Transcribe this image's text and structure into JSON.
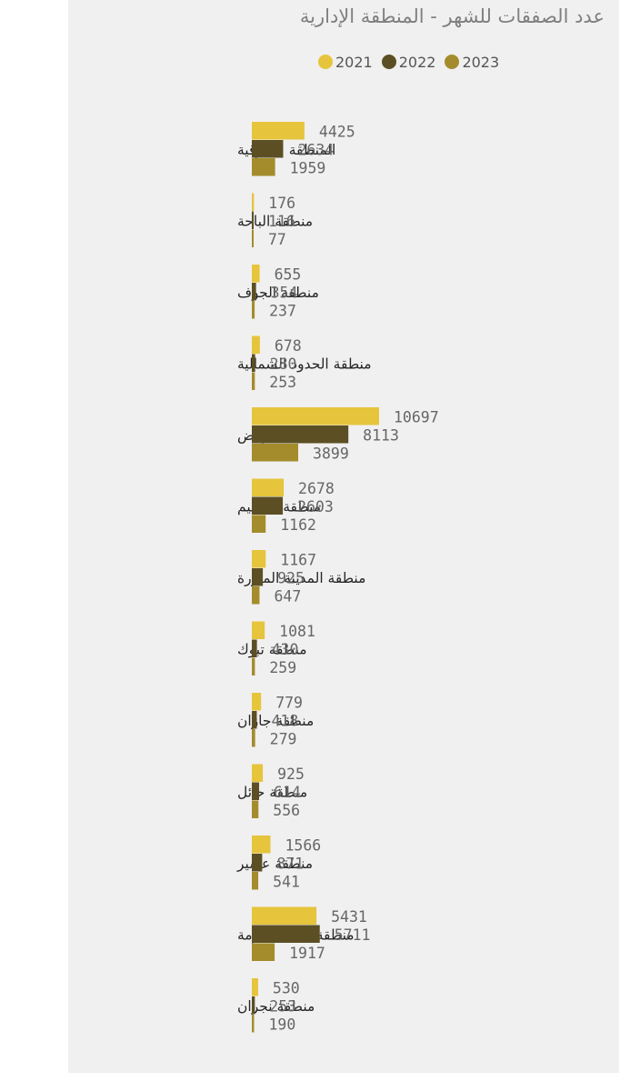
{
  "chart_data": {
    "type": "bar",
    "orientation": "horizontal",
    "title": "عدد الصفقات للشهر - المنطقة الإدارية",
    "categories": [
      "المنطقة الشرقية",
      "منطقة الباحة",
      "منطقة الجوف",
      "منطقة الحدود الشمالية",
      "منطقة الرياض",
      "منطقة القصيم",
      "منطقة المدينة المنورة",
      "منطقة تبوك",
      "منطقة جازان",
      "منطقة حائل",
      "منطقة عسير",
      "منطقة مكة المكرمة",
      "منطقة نجران"
    ],
    "series": [
      {
        "name": "2021",
        "color": "#e6c43c",
        "values": [
          4425,
          176,
          655,
          678,
          10697,
          2678,
          1167,
          1081,
          779,
          925,
          1566,
          5431,
          530
        ]
      },
      {
        "name": "2022",
        "color": "#5c4f24",
        "values": [
          2634,
          116,
          354,
          280,
          8113,
          2603,
          925,
          430,
          418,
          614,
          871,
          5711,
          253
        ]
      },
      {
        "name": "2023",
        "color": "#a48c2c",
        "values": [
          1959,
          77,
          237,
          253,
          3899,
          1162,
          647,
          259,
          279,
          556,
          541,
          1917,
          190
        ]
      }
    ],
    "xlim": [
      0,
      10697
    ],
    "grid": false,
    "legend_position": "top"
  }
}
